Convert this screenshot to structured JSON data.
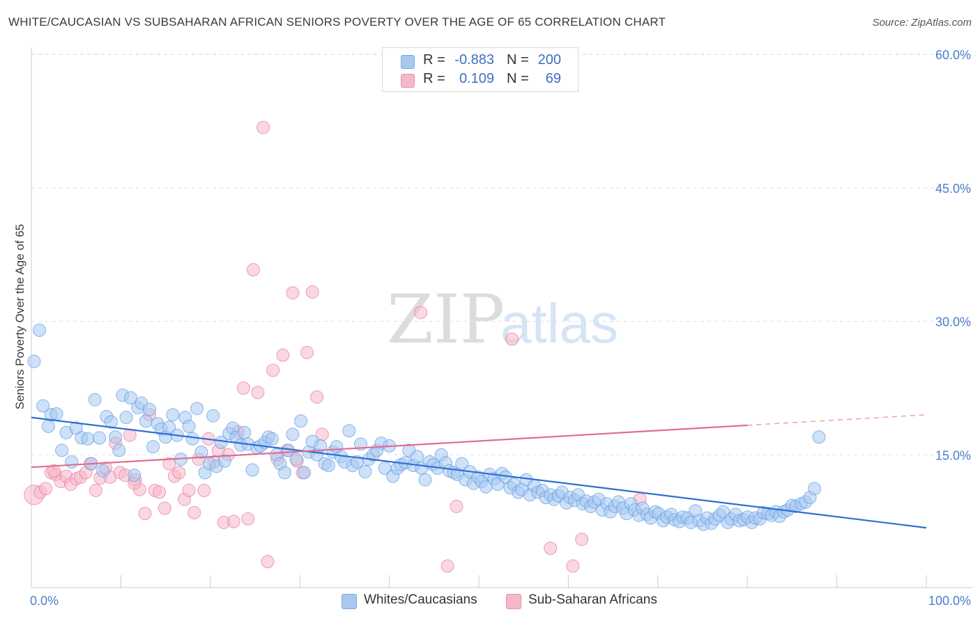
{
  "header": {
    "title": "WHITE/CAUCASIAN VS SUBSAHARAN AFRICAN SENIORS POVERTY OVER THE AGE OF 65 CORRELATION CHART",
    "source": "Source: ZipAtlas.com"
  },
  "watermark": "ZIPatlas",
  "legend": {
    "rows": [
      {
        "r_label": "R =",
        "r_value": "-0.883",
        "n_label": "N =",
        "n_value": "200",
        "color": "#a8c8f0"
      },
      {
        "r_label": "R =",
        "r_value": "0.109",
        "n_label": "N =",
        "n_value": "69",
        "color": "#f5b8c8"
      }
    ]
  },
  "bottom_legend": {
    "items": [
      {
        "label": "Whites/Caucasians",
        "color": "#a8c8f0"
      },
      {
        "label": "Sub-Saharan Africans",
        "color": "#f5b8c8"
      }
    ]
  },
  "chart_data": {
    "type": "scatter",
    "title": "WHITE/CAUCASIAN VS SUBSAHARAN AFRICAN SENIORS POVERTY OVER THE AGE OF 65 CORRELATION CHART",
    "xlabel": "",
    "ylabel": "Seniors Poverty Over the Age of 65",
    "xlim": [
      0,
      100
    ],
    "ylim": [
      0,
      60
    ],
    "x_tick_labels": [
      "0.0%",
      "100.0%"
    ],
    "y_ticks": [
      15,
      30,
      45,
      60
    ],
    "y_tick_labels": [
      "15.0%",
      "30.0%",
      "45.0%",
      "60.0%"
    ],
    "grid": "horizontal dashed",
    "legend_position": "top-center",
    "series": [
      {
        "name": "Whites/Caucasians",
        "color": "#5b9ae8",
        "fill": "#a8c8f0",
        "r": -0.883,
        "n": 200,
        "trend": {
          "x": [
            0,
            100
          ],
          "y": [
            19.2,
            6.8
          ],
          "style": "solid"
        },
        "points": [
          [
            0.3,
            25.5
          ],
          [
            0.9,
            29.0
          ],
          [
            1.3,
            20.5
          ],
          [
            1.9,
            18.2
          ],
          [
            2.2,
            19.5
          ],
          [
            2.8,
            19.6
          ],
          [
            3.4,
            15.5
          ],
          [
            3.9,
            17.5
          ],
          [
            4.5,
            14.2
          ],
          [
            5.0,
            18.0
          ],
          [
            5.6,
            16.9
          ],
          [
            6.3,
            16.8
          ],
          [
            6.7,
            14.0
          ],
          [
            7.1,
            21.2
          ],
          [
            7.6,
            16.9
          ],
          [
            8.0,
            13.2
          ],
          [
            8.4,
            19.3
          ],
          [
            8.9,
            18.7
          ],
          [
            9.4,
            17.0
          ],
          [
            9.8,
            15.5
          ],
          [
            10.2,
            21.7
          ],
          [
            10.6,
            19.2
          ],
          [
            11.1,
            21.4
          ],
          [
            11.5,
            12.7
          ],
          [
            11.9,
            20.3
          ],
          [
            12.3,
            20.8
          ],
          [
            12.8,
            18.8
          ],
          [
            13.2,
            20.1
          ],
          [
            13.6,
            15.9
          ],
          [
            14.1,
            18.5
          ],
          [
            14.5,
            17.9
          ],
          [
            15.0,
            17.0
          ],
          [
            15.4,
            18.1
          ],
          [
            15.8,
            19.5
          ],
          [
            16.3,
            17.2
          ],
          [
            16.7,
            14.5
          ],
          [
            17.2,
            19.2
          ],
          [
            17.6,
            18.2
          ],
          [
            18.0,
            16.8
          ],
          [
            18.5,
            20.2
          ],
          [
            19.0,
            15.3
          ],
          [
            19.4,
            13.0
          ],
          [
            19.9,
            14.0
          ],
          [
            20.3,
            19.4
          ],
          [
            20.7,
            13.7
          ],
          [
            21.2,
            16.4
          ],
          [
            21.6,
            14.3
          ],
          [
            22.1,
            17.4
          ],
          [
            22.5,
            18.0
          ],
          [
            22.9,
            17.0
          ],
          [
            23.4,
            16.1
          ],
          [
            23.8,
            17.5
          ],
          [
            24.2,
            16.2
          ],
          [
            24.7,
            13.3
          ],
          [
            25.2,
            15.8
          ],
          [
            25.6,
            16.0
          ],
          [
            26.1,
            16.4
          ],
          [
            26.5,
            17.0
          ],
          [
            26.9,
            16.8
          ],
          [
            27.4,
            15.0
          ],
          [
            27.8,
            14.0
          ],
          [
            28.3,
            13.0
          ],
          [
            28.7,
            15.5
          ],
          [
            29.2,
            17.3
          ],
          [
            29.6,
            14.5
          ],
          [
            30.1,
            18.8
          ],
          [
            30.5,
            13.0
          ],
          [
            31.0,
            15.3
          ],
          [
            31.4,
            16.5
          ],
          [
            31.9,
            15.0
          ],
          [
            32.3,
            16.0
          ],
          [
            32.8,
            14.0
          ],
          [
            33.2,
            13.8
          ],
          [
            33.7,
            15.3
          ],
          [
            34.1,
            15.9
          ],
          [
            34.6,
            14.8
          ],
          [
            35.0,
            14.2
          ],
          [
            35.5,
            17.7
          ],
          [
            35.9,
            13.8
          ],
          [
            36.4,
            14.2
          ],
          [
            36.8,
            16.2
          ],
          [
            37.3,
            13.1
          ],
          [
            37.7,
            14.5
          ],
          [
            38.2,
            15.0
          ],
          [
            38.6,
            15.5
          ],
          [
            39.1,
            16.3
          ],
          [
            39.5,
            13.5
          ],
          [
            40.0,
            16.0
          ],
          [
            40.4,
            12.6
          ],
          [
            40.9,
            13.5
          ],
          [
            41.3,
            13.9
          ],
          [
            41.8,
            14.1
          ],
          [
            42.2,
            15.5
          ],
          [
            42.7,
            13.8
          ],
          [
            43.1,
            14.8
          ],
          [
            43.6,
            13.5
          ],
          [
            44.0,
            12.2
          ],
          [
            44.5,
            14.2
          ],
          [
            44.9,
            13.9
          ],
          [
            45.4,
            13.5
          ],
          [
            45.8,
            15.0
          ],
          [
            46.3,
            14.1
          ],
          [
            46.7,
            13.2
          ],
          [
            47.2,
            13.0
          ],
          [
            47.6,
            12.8
          ],
          [
            48.1,
            14.0
          ],
          [
            48.5,
            12.2
          ],
          [
            49.0,
            13.1
          ],
          [
            49.4,
            11.8
          ],
          [
            49.9,
            12.5
          ],
          [
            50.3,
            12.0
          ],
          [
            50.8,
            11.4
          ],
          [
            51.2,
            12.8
          ],
          [
            51.7,
            12.3
          ],
          [
            52.1,
            11.7
          ],
          [
            52.6,
            12.9
          ],
          [
            53.0,
            12.5
          ],
          [
            53.5,
            11.3
          ],
          [
            53.9,
            11.7
          ],
          [
            54.4,
            10.8
          ],
          [
            54.8,
            11.1
          ],
          [
            55.3,
            12.2
          ],
          [
            55.7,
            10.5
          ],
          [
            56.2,
            11.5
          ],
          [
            56.6,
            10.8
          ],
          [
            57.1,
            11.0
          ],
          [
            57.5,
            10.2
          ],
          [
            58.0,
            10.5
          ],
          [
            58.4,
            10.0
          ],
          [
            58.9,
            10.4
          ],
          [
            59.3,
            10.8
          ],
          [
            59.8,
            9.6
          ],
          [
            60.2,
            10.2
          ],
          [
            60.7,
            9.9
          ],
          [
            61.1,
            10.5
          ],
          [
            61.6,
            9.5
          ],
          [
            62.0,
            9.8
          ],
          [
            62.5,
            9.2
          ],
          [
            62.9,
            9.7
          ],
          [
            63.4,
            10.0
          ],
          [
            63.8,
            8.8
          ],
          [
            64.3,
            9.5
          ],
          [
            64.7,
            8.6
          ],
          [
            65.2,
            9.2
          ],
          [
            65.6,
            9.7
          ],
          [
            66.1,
            9.0
          ],
          [
            66.5,
            8.4
          ],
          [
            67.0,
            9.5
          ],
          [
            67.4,
            8.8
          ],
          [
            67.9,
            8.2
          ],
          [
            68.3,
            9.0
          ],
          [
            68.8,
            8.3
          ],
          [
            69.2,
            7.9
          ],
          [
            69.7,
            8.6
          ],
          [
            70.1,
            8.4
          ],
          [
            70.6,
            7.6
          ],
          [
            71.0,
            8.0
          ],
          [
            71.5,
            8.3
          ],
          [
            71.9,
            7.7
          ],
          [
            72.4,
            7.5
          ],
          [
            72.8,
            8.0
          ],
          [
            73.3,
            7.9
          ],
          [
            73.7,
            7.4
          ],
          [
            74.2,
            8.7
          ],
          [
            74.6,
            7.6
          ],
          [
            75.1,
            7.2
          ],
          [
            75.5,
            7.9
          ],
          [
            76.0,
            7.3
          ],
          [
            76.4,
            7.8
          ],
          [
            76.9,
            8.2
          ],
          [
            77.3,
            8.6
          ],
          [
            77.8,
            7.4
          ],
          [
            78.2,
            7.8
          ],
          [
            78.7,
            8.3
          ],
          [
            79.1,
            7.6
          ],
          [
            79.6,
            7.7
          ],
          [
            80.0,
            8.0
          ],
          [
            80.5,
            7.4
          ],
          [
            80.9,
            7.9
          ],
          [
            81.4,
            7.8
          ],
          [
            81.8,
            8.5
          ],
          [
            82.3,
            8.4
          ],
          [
            82.7,
            8.2
          ],
          [
            83.2,
            8.6
          ],
          [
            83.6,
            8.1
          ],
          [
            84.1,
            8.6
          ],
          [
            84.5,
            8.8
          ],
          [
            85.0,
            9.3
          ],
          [
            85.4,
            9.2
          ],
          [
            86.0,
            9.5
          ],
          [
            86.5,
            9.7
          ],
          [
            87.0,
            10.2
          ],
          [
            87.5,
            11.2
          ],
          [
            88.0,
            17.0
          ]
        ]
      },
      {
        "name": "Sub-Saharan Africans",
        "color": "#e8789c",
        "fill": "#f5b8c8",
        "r": 0.109,
        "n": 69,
        "trend": {
          "x": [
            0,
            100
          ],
          "y": [
            13.6,
            19.5
          ],
          "style": "solid to 80, dashed beyond"
        },
        "points": [
          [
            0.3,
            10.5
          ],
          [
            1.0,
            10.8
          ],
          [
            1.6,
            11.2
          ],
          [
            2.2,
            13.0
          ],
          [
            2.7,
            12.8
          ],
          [
            3.3,
            12.0
          ],
          [
            3.9,
            12.6
          ],
          [
            4.4,
            11.7
          ],
          [
            5.0,
            12.3
          ],
          [
            5.5,
            12.5
          ],
          [
            6.1,
            13.0
          ],
          [
            6.6,
            14.0
          ],
          [
            7.2,
            11.0
          ],
          [
            7.7,
            12.4
          ],
          [
            8.3,
            13.5
          ],
          [
            8.8,
            12.5
          ],
          [
            9.4,
            16.3
          ],
          [
            9.9,
            13.0
          ],
          [
            10.5,
            12.7
          ],
          [
            11.0,
            17.2
          ],
          [
            11.6,
            12.2
          ],
          [
            12.1,
            11.1
          ],
          [
            12.7,
            8.4
          ],
          [
            13.2,
            19.5
          ],
          [
            13.8,
            11.0
          ],
          [
            14.3,
            10.8
          ],
          [
            14.9,
            9.0
          ],
          [
            15.4,
            14.0
          ],
          [
            16.0,
            12.6
          ],
          [
            16.5,
            13.0
          ],
          [
            17.1,
            10.0
          ],
          [
            17.6,
            11.0
          ],
          [
            18.2,
            8.5
          ],
          [
            18.7,
            14.5
          ],
          [
            19.3,
            11.0
          ],
          [
            19.8,
            16.8
          ],
          [
            20.4,
            14.2
          ],
          [
            20.9,
            15.5
          ],
          [
            21.5,
            7.4
          ],
          [
            22.0,
            15.0
          ],
          [
            22.6,
            7.5
          ],
          [
            23.1,
            17.6
          ],
          [
            23.7,
            22.5
          ],
          [
            24.2,
            7.8
          ],
          [
            24.8,
            35.8
          ],
          [
            25.3,
            22.0
          ],
          [
            25.9,
            51.8
          ],
          [
            26.4,
            3.0
          ],
          [
            27.0,
            24.5
          ],
          [
            27.5,
            14.5
          ],
          [
            28.1,
            26.2
          ],
          [
            28.6,
            15.5
          ],
          [
            29.2,
            33.2
          ],
          [
            29.7,
            14.3
          ],
          [
            30.3,
            13.0
          ],
          [
            30.8,
            26.5
          ],
          [
            31.4,
            33.3
          ],
          [
            31.9,
            21.5
          ],
          [
            32.5,
            17.3
          ],
          [
            43.5,
            31.0
          ],
          [
            47.5,
            9.2
          ],
          [
            53.7,
            28.0
          ],
          [
            46.5,
            2.5
          ],
          [
            58.0,
            4.5
          ],
          [
            60.5,
            2.5
          ],
          [
            61.5,
            5.5
          ],
          [
            68.0,
            10.0
          ],
          [
            2.5,
            13.2
          ],
          [
            11.5,
            11.8
          ]
        ]
      }
    ]
  }
}
